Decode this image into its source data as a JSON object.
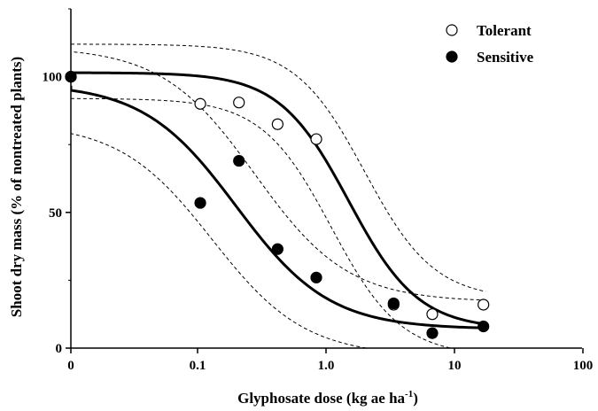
{
  "chart_data": {
    "type": "scatter",
    "xscale": "log",
    "x_ticks": [
      {
        "value": 0,
        "label": "0"
      },
      {
        "value": 0.1,
        "label": "0.1"
      },
      {
        "value": 1,
        "label": "1.0"
      },
      {
        "value": 10,
        "label": "10"
      },
      {
        "value": 100,
        "label": "100"
      }
    ],
    "y_ticks": [
      0,
      50,
      100
    ],
    "ylim": [
      0,
      125
    ],
    "xlabel": "Glyphosate dose (kg ae ha",
    "xlabel_sup": "-1",
    "xlabel_end": ")",
    "ylabel": "Shoot dry mass (% of nontreated plants)",
    "legend": {
      "position": "top-right"
    },
    "series": [
      {
        "name": "Tolerant",
        "marker": "open-circle",
        "points": [
          {
            "x": 0,
            "y": 100
          },
          {
            "x": 0.105,
            "y": 90
          },
          {
            "x": 0.21,
            "y": 90.5
          },
          {
            "x": 0.42,
            "y": 82.5
          },
          {
            "x": 0.84,
            "y": 77
          },
          {
            "x": 3.36,
            "y": 16
          },
          {
            "x": 6.72,
            "y": 12.5
          },
          {
            "x": 16.8,
            "y": 16
          }
        ],
        "fit": {
          "top": 101.5,
          "bottom": 7,
          "ed50": 1.5,
          "hill": 1.6
        },
        "ci_upper": {
          "top": 112,
          "bottom": 18,
          "ed50": 2.0,
          "hill": 1.6
        },
        "ci_lower": {
          "top": 92,
          "bottom": -3,
          "ed50": 1.1,
          "hill": 1.6
        }
      },
      {
        "name": "Sensitive",
        "marker": "filled-circle",
        "points": [
          {
            "x": 0,
            "y": 100
          },
          {
            "x": 0.105,
            "y": 53.5
          },
          {
            "x": 0.21,
            "y": 69
          },
          {
            "x": 0.42,
            "y": 36.5
          },
          {
            "x": 0.84,
            "y": 26
          },
          {
            "x": 3.36,
            "y": 16.5
          },
          {
            "x": 6.72,
            "y": 5.5
          },
          {
            "x": 16.8,
            "y": 8
          }
        ],
        "fit": {
          "top": 97.5,
          "bottom": 7,
          "ed50": 0.2,
          "hill": 1.2
        },
        "ci_upper": {
          "top": 111,
          "bottom": 17,
          "ed50": 0.28,
          "hill": 1.2
        },
        "ci_lower": {
          "top": 83,
          "bottom": -3,
          "ed50": 0.13,
          "hill": 1.2
        }
      }
    ]
  }
}
